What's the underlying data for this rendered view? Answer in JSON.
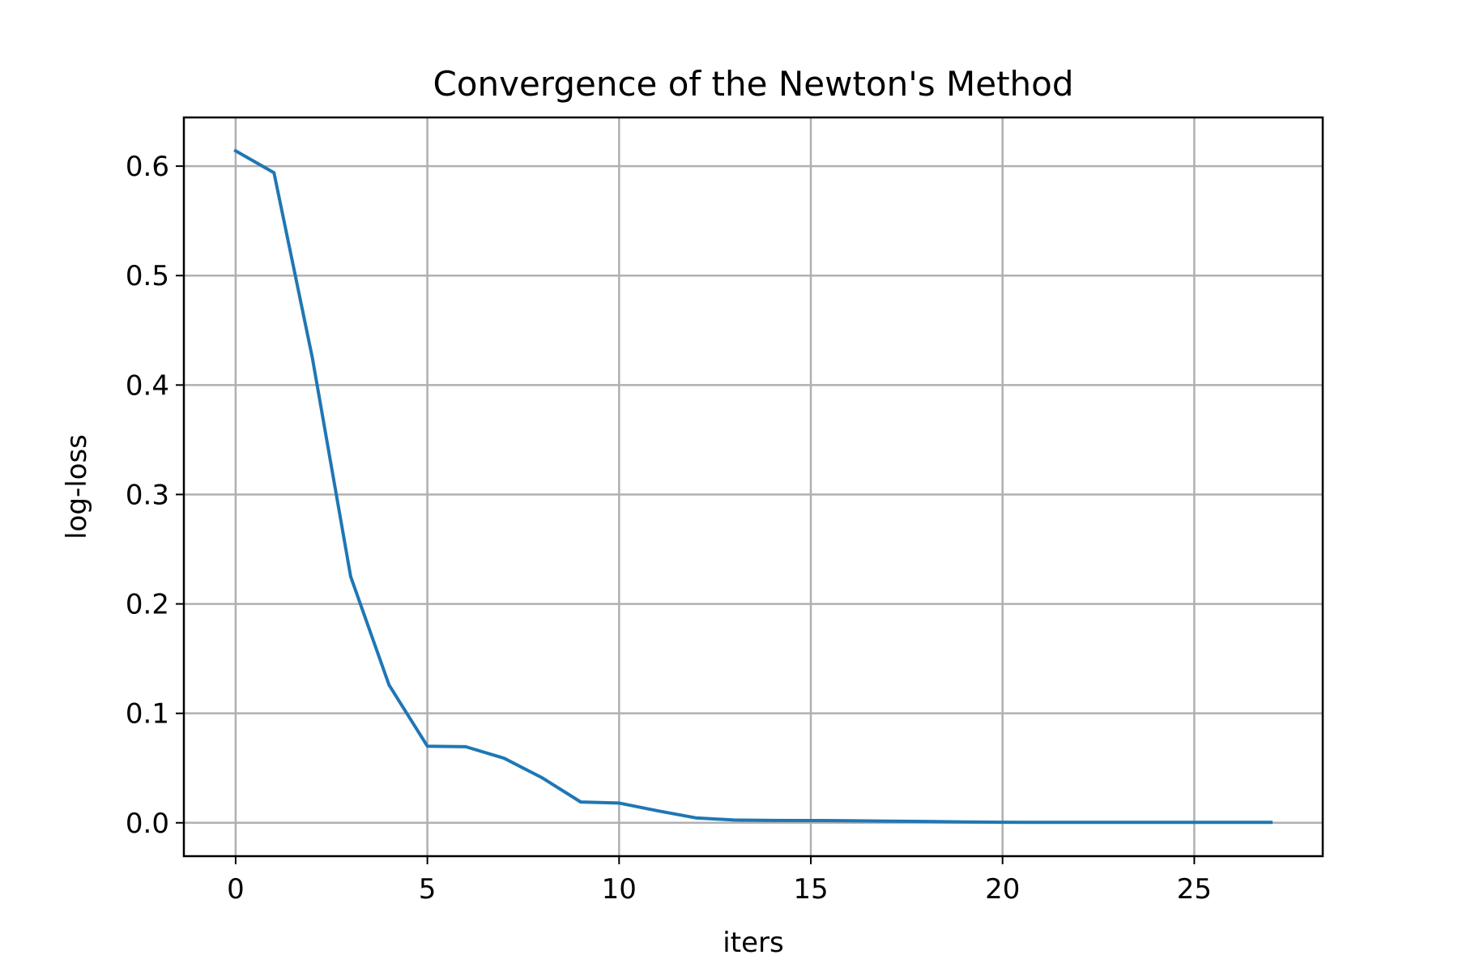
{
  "chart_data": {
    "type": "line",
    "title": "Convergence of the Newton's Method",
    "xlabel": "iters",
    "ylabel": "log-loss",
    "xlim": [
      -1.35,
      28.35
    ],
    "ylim": [
      -0.0305,
      0.6445
    ],
    "xticks": [
      0,
      5,
      10,
      15,
      20,
      25
    ],
    "yticks": [
      0.0,
      0.1,
      0.2,
      0.3,
      0.4,
      0.5,
      0.6
    ],
    "xtick_labels": [
      "0",
      "5",
      "10",
      "15",
      "20",
      "25"
    ],
    "ytick_labels": [
      "0.0",
      "0.1",
      "0.2",
      "0.3",
      "0.4",
      "0.5",
      "0.6"
    ],
    "grid": true,
    "series": [
      {
        "color": "#1f77b4",
        "x": [
          0,
          1,
          2,
          3,
          4,
          5,
          6,
          7,
          8,
          9,
          10,
          11,
          12,
          13,
          14,
          15,
          16,
          17,
          18,
          19,
          20,
          21,
          22,
          23,
          24,
          25,
          26,
          27
        ],
        "y": [
          0.614,
          0.594,
          0.425,
          0.225,
          0.126,
          0.07,
          0.0695,
          0.059,
          0.041,
          0.019,
          0.018,
          0.011,
          0.0045,
          0.0025,
          0.0022,
          0.0021,
          0.0019,
          0.0015,
          0.0012,
          0.0008,
          0.0005,
          0.0004,
          0.0004,
          0.0004,
          0.0004,
          0.0004,
          0.0004,
          0.0004
        ]
      }
    ]
  }
}
